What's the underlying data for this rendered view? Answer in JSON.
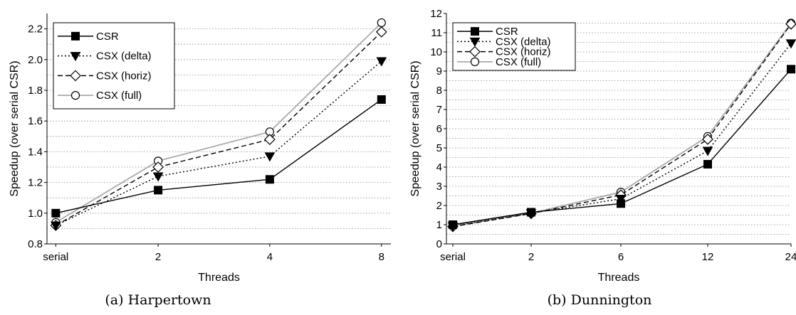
{
  "chart_data": [
    {
      "type": "line",
      "caption": "(a) Harpertown",
      "xlabel": "Threads",
      "ylabel": "Speedup (over serial CSR)",
      "categories": [
        "serial",
        "2",
        "4",
        "8"
      ],
      "ylim": [
        0.8,
        2.3
      ],
      "yticks": [
        "0.8",
        "1.0",
        "1.2",
        "1.4",
        "1.6",
        "1.8",
        "2.0",
        "2.2"
      ],
      "ytick_values": [
        0.8,
        1.0,
        1.2,
        1.4,
        1.6,
        1.8,
        2.0,
        2.2
      ],
      "grid": true,
      "legend_position": "top-left",
      "series": [
        {
          "name": "CSR",
          "values": [
            1.0,
            1.15,
            1.22,
            1.74
          ],
          "color": "#000000",
          "dash": "solid",
          "marker": "filled-square"
        },
        {
          "name": "CSX (delta)",
          "values": [
            0.92,
            1.24,
            1.37,
            1.99
          ],
          "color": "#000000",
          "dash": "dotted",
          "marker": "filled-triangle-down"
        },
        {
          "name": "CSX (horiz)",
          "values": [
            0.92,
            1.3,
            1.48,
            2.18
          ],
          "color": "#000000",
          "dash": "dashed",
          "marker": "open-diamond"
        },
        {
          "name": "CSX (full)",
          "values": [
            0.94,
            1.34,
            1.53,
            2.24
          ],
          "color": "#aaaaaa",
          "dash": "solid",
          "marker": "open-circle"
        }
      ]
    },
    {
      "type": "line",
      "caption": "(b) Dunnington",
      "xlabel": "Threads",
      "ylabel": "Speedup (over serial CSR)",
      "categories": [
        "serial",
        "2",
        "6",
        "12",
        "24"
      ],
      "ylim": [
        0,
        12
      ],
      "yticks": [
        "0",
        "1",
        "2",
        "3",
        "4",
        "5",
        "6",
        "7",
        "8",
        "9",
        "10",
        "11",
        "12"
      ],
      "ytick_values": [
        0,
        1,
        2,
        3,
        4,
        5,
        6,
        7,
        8,
        9,
        10,
        11,
        12
      ],
      "grid": true,
      "legend_position": "top-left",
      "series": [
        {
          "name": "CSR",
          "values": [
            1.0,
            1.65,
            2.1,
            4.15,
            9.1
          ],
          "color": "#000000",
          "dash": "solid",
          "marker": "filled-square"
        },
        {
          "name": "CSX (delta)",
          "values": [
            0.92,
            1.6,
            2.35,
            4.85,
            10.45
          ],
          "color": "#000000",
          "dash": "dotted",
          "marker": "filled-triangle-down"
        },
        {
          "name": "CSX (horiz)",
          "values": [
            0.9,
            1.58,
            2.55,
            5.45,
            11.45
          ],
          "color": "#000000",
          "dash": "dashed",
          "marker": "open-diamond"
        },
        {
          "name": "CSX (full)",
          "values": [
            0.95,
            1.6,
            2.7,
            5.6,
            11.5
          ],
          "color": "#aaaaaa",
          "dash": "solid",
          "marker": "open-circle"
        }
      ]
    }
  ]
}
